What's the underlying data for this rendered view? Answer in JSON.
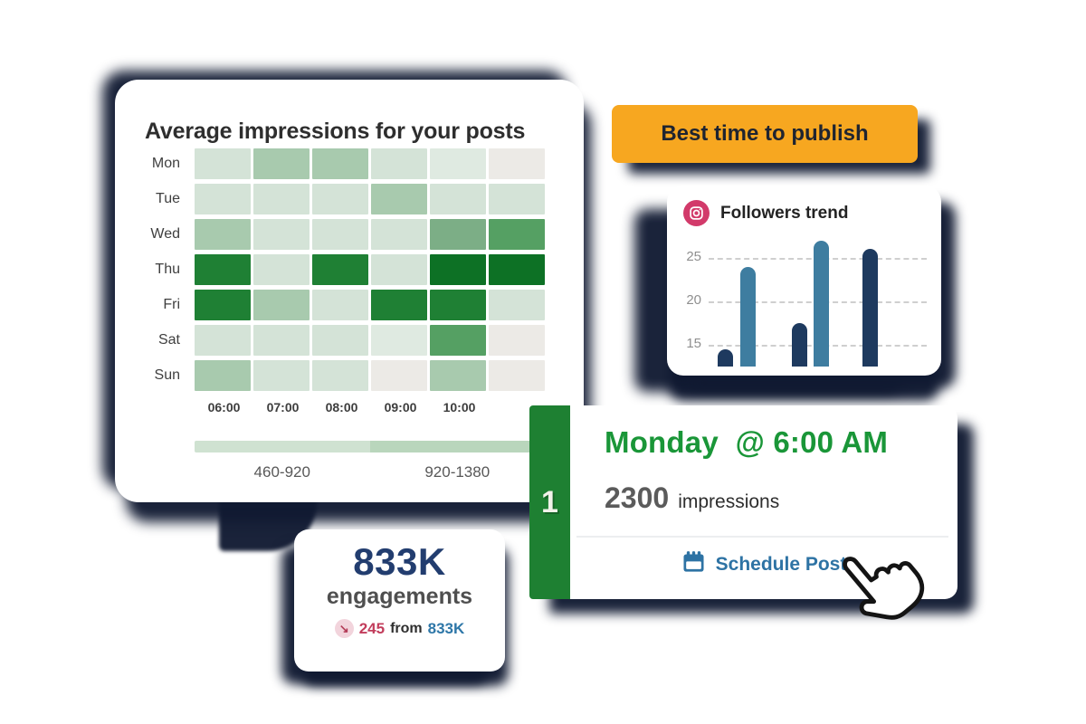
{
  "page": {
    "background": "#ffffff",
    "shadow_color": "#131c36"
  },
  "impressions_card": {
    "title": "Average impressions for your posts"
  },
  "banner": {
    "label": "Best time to publish",
    "bg": "#f7a720",
    "text_color": "#1f2430"
  },
  "followers_card": {
    "title": "Followers trend",
    "icon": "instagram-icon",
    "icon_color": "#d23a6a"
  },
  "best_slot_card": {
    "rank": "1",
    "title": "Monday  @ 6:00 AM",
    "metric_value": "2300",
    "metric_unit": "impressions",
    "action": "Schedule Post",
    "strip_green": "#1e8032",
    "title_green": "#1a9638",
    "action_color": "#2e73a4"
  },
  "engagements_card": {
    "value": "833K",
    "label": "engagements",
    "trend": {
      "arrow": "↘",
      "delta": "245",
      "joiner": "from",
      "total": "833K",
      "delta_color": "#c23d5c",
      "total_color": "#2e77a8"
    }
  },
  "chart_data": [
    {
      "type": "heatmap",
      "title": "Average impressions for your posts",
      "rows": [
        "Mon",
        "Tue",
        "Wed",
        "Thu",
        "Fri",
        "Sat",
        "Sun"
      ],
      "columns": [
        "06:00",
        "07:00",
        "08:00",
        "09:00",
        "10:00",
        ""
      ],
      "levels": [
        [
          2,
          3,
          3,
          2,
          1,
          0
        ],
        [
          2,
          2,
          2,
          3,
          2,
          2
        ],
        [
          3,
          2,
          2,
          2,
          4,
          5
        ],
        [
          6,
          2,
          6,
          2,
          7,
          7
        ],
        [
          6,
          3,
          2,
          6,
          6,
          2
        ],
        [
          2,
          2,
          2,
          1,
          5,
          0
        ],
        [
          3,
          2,
          2,
          0,
          3,
          0
        ]
      ],
      "palette": [
        "#eceae6",
        "#dfeae1",
        "#d4e3d7",
        "#a8caae",
        "#7cae86",
        "#55a063",
        "#1f8034",
        "#0d7125"
      ],
      "legend_ranges": [
        "460-920",
        "920-1380"
      ],
      "legend_colors": [
        "#cfe2d1",
        "#b9d6bc"
      ],
      "grid": "off",
      "legend_position": "bottom"
    },
    {
      "type": "bar",
      "title": "Followers trend",
      "values": [
        14.5,
        24,
        17.5,
        27,
        26
      ],
      "series_colors": [
        "#1e3a5f",
        "#3e7da0",
        "#1e3a5f",
        "#3e7da0",
        "#1e3a5f"
      ],
      "yticks": [
        25,
        20,
        15
      ],
      "ylim": [
        12.5,
        28.5
      ],
      "grid": "dashed-horizontal",
      "legend_position": "none",
      "xlabel": "",
      "ylabel": ""
    }
  ]
}
